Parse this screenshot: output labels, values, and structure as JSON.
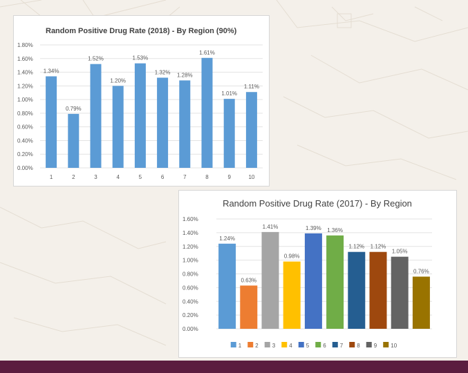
{
  "chart_data": [
    {
      "type": "bar",
      "title": "Random Positive Drug Rate (2018) - By Region (90%)",
      "categories": [
        "1",
        "2",
        "3",
        "4",
        "5",
        "6",
        "7",
        "8",
        "9",
        "10"
      ],
      "values": [
        1.34,
        0.79,
        1.52,
        1.2,
        1.53,
        1.32,
        1.28,
        1.61,
        1.01,
        1.11
      ],
      "value_labels": [
        "1.34%",
        "0.79%",
        "1.52%",
        "1.20%",
        "1.53%",
        "1.32%",
        "1.28%",
        "1.61%",
        "1.01%",
        "1.11%"
      ],
      "y_ticks": [
        "0.00%",
        "0.20%",
        "0.40%",
        "0.60%",
        "0.80%",
        "1.00%",
        "1.20%",
        "1.40%",
        "1.60%",
        "1.80%"
      ],
      "ylim": [
        0,
        1.8
      ],
      "grid": true,
      "legend": false,
      "bar_color": "#5b9bd5"
    },
    {
      "type": "bar",
      "title": "Random Positive Drug Rate (2017) - By Region",
      "categories": [
        "1",
        "2",
        "3",
        "4",
        "5",
        "6",
        "7",
        "8",
        "9",
        "10"
      ],
      "values": [
        1.24,
        0.63,
        1.41,
        0.98,
        1.39,
        1.36,
        1.12,
        1.12,
        1.05,
        0.76
      ],
      "value_labels": [
        "1.24%",
        "0.63%",
        "1.41%",
        "0.98%",
        "1.39%",
        "1.36%",
        "1.12%",
        "1.12%",
        "1.05%",
        "0.76%"
      ],
      "y_ticks": [
        "0.00%",
        "0.20%",
        "0.40%",
        "0.60%",
        "0.80%",
        "1.00%",
        "1.20%",
        "1.40%",
        "1.60%"
      ],
      "ylim": [
        0,
        1.6
      ],
      "grid": true,
      "legend_placement": "bottom",
      "colors": [
        "#5b9bd5",
        "#ed7d31",
        "#a5a5a5",
        "#ffc000",
        "#4472c4",
        "#70ad47",
        "#255e91",
        "#9e480e",
        "#636363",
        "#997300"
      ]
    }
  ]
}
